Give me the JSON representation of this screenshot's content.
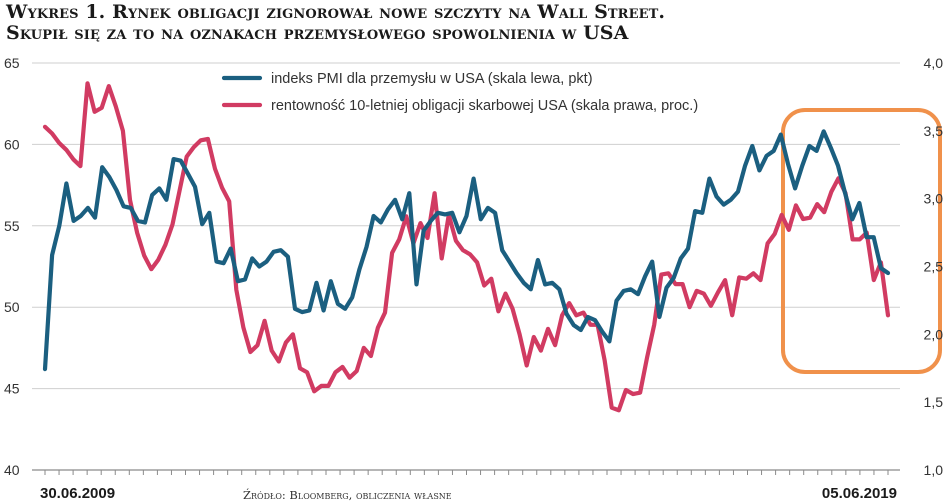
{
  "title": {
    "line1": "Wykres 1. Rynek obligacji zignorował nowe szczyty na Wall Street.",
    "line2": "Skupił się za to na oznakach przemysłowego spowolnienia w USA"
  },
  "source": "Źródło: Bloomberg, obliczenia własne",
  "colors": {
    "pmi": "#1b5f80",
    "yield": "#d13b62",
    "highlight": "#f0914b",
    "grid": "#cfcfcf"
  },
  "chart_data": {
    "type": "line",
    "title": "Wykres 1. Rynek obligacji zignorował nowe szczyty na Wall Street. Skupił się za to na oznakach przemysłowego spowolnienia w USA",
    "x_start_label": "30.06.2009",
    "x_end_label": "05.06.2019",
    "left_axis": {
      "min": 40,
      "max": 65,
      "ticks": [
        40,
        45,
        50,
        55,
        60,
        65
      ],
      "labels": [
        "40",
        "45",
        "50",
        "55",
        "60",
        "65"
      ]
    },
    "right_axis": {
      "min": 1.0,
      "max": 4.0,
      "ticks": [
        1.0,
        1.5,
        2.0,
        2.5,
        3.0,
        3.5,
        4.0
      ],
      "labels": [
        "1,0",
        "1,5",
        "2,0",
        "2,5",
        "3,0",
        "3,5",
        "4,0"
      ]
    },
    "highlight": {
      "from": 0.93,
      "to": 1.0,
      "label": ""
    },
    "series": [
      {
        "name": "indeks PMI dla przemysłu w USA (skala lewa, pkt)",
        "axis": "left",
        "values": [
          46.2,
          53.2,
          55.0,
          57.6,
          55.3,
          55.6,
          56.1,
          55.5,
          58.6,
          58.0,
          57.2,
          56.2,
          56.1,
          55.3,
          55.2,
          56.9,
          57.3,
          56.6,
          59.1,
          59.0,
          58.2,
          57.4,
          55.1,
          55.8,
          52.8,
          52.7,
          53.6,
          51.6,
          51.7,
          53.0,
          52.5,
          52.8,
          53.4,
          53.5,
          53.1,
          49.9,
          49.7,
          49.8,
          51.5,
          49.8,
          51.6,
          50.2,
          49.9,
          50.6,
          52.3,
          53.7,
          55.6,
          55.2,
          56.0,
          56.6,
          55.4,
          57.0,
          51.4,
          54.7,
          55.3,
          55.8,
          55.7,
          55.8,
          54.6,
          55.6,
          57.9,
          55.4,
          56.1,
          55.8,
          53.5,
          52.8,
          52.1,
          51.5,
          51.1,
          52.9,
          51.4,
          51.5,
          51.1,
          49.6,
          48.9,
          48.6,
          49.4,
          49.2,
          48.5,
          47.9,
          50.4,
          51.0,
          51.1,
          50.8,
          51.9,
          52.8,
          49.4,
          51.2,
          51.8,
          53.0,
          53.6,
          55.9,
          55.8,
          57.9,
          56.8,
          56.3,
          56.6,
          57.1,
          58.7,
          59.9,
          58.4,
          59.3,
          59.6,
          60.6,
          58.8,
          57.3,
          58.7,
          59.9,
          59.6,
          60.8,
          59.8,
          58.7,
          57.0,
          55.4,
          56.4,
          54.3,
          54.3,
          52.4,
          52.1
        ]
      },
      {
        "name": "rentowność 10-letniej obligacji skarbowej USA (skala prawa, proc.)",
        "axis": "right",
        "values": [
          3.53,
          3.48,
          3.41,
          3.36,
          3.29,
          3.24,
          3.85,
          3.64,
          3.67,
          3.83,
          3.68,
          3.5,
          2.99,
          2.75,
          2.58,
          2.48,
          2.55,
          2.66,
          2.81,
          3.06,
          3.31,
          3.38,
          3.43,
          3.44,
          3.22,
          3.08,
          2.98,
          2.33,
          2.05,
          1.87,
          1.92,
          2.1,
          1.88,
          1.8,
          1.94,
          2.0,
          1.75,
          1.72,
          1.58,
          1.62,
          1.62,
          1.72,
          1.76,
          1.68,
          1.73,
          1.9,
          1.84,
          2.05,
          2.16,
          2.6,
          2.7,
          2.87,
          2.67,
          2.82,
          2.71,
          3.04,
          2.56,
          2.88,
          2.69,
          2.62,
          2.59,
          2.53,
          2.36,
          2.41,
          2.17,
          2.3,
          2.19,
          2.0,
          1.77,
          1.98,
          1.88,
          2.04,
          1.92,
          2.14,
          2.23,
          2.14,
          2.16,
          2.07,
          2.07,
          1.81,
          1.46,
          1.44,
          1.59,
          1.56,
          1.57,
          1.83,
          2.07,
          2.44,
          2.45,
          2.37,
          2.37,
          2.2,
          2.32,
          2.3,
          2.21,
          2.31,
          2.4,
          2.14,
          2.42,
          2.41,
          2.45,
          2.4,
          2.67,
          2.74,
          2.88,
          2.77,
          2.95,
          2.85,
          2.86,
          2.96,
          2.9,
          3.05,
          3.15,
          3.04,
          2.7,
          2.7,
          2.75,
          2.4,
          2.53,
          2.14
        ]
      }
    ]
  }
}
